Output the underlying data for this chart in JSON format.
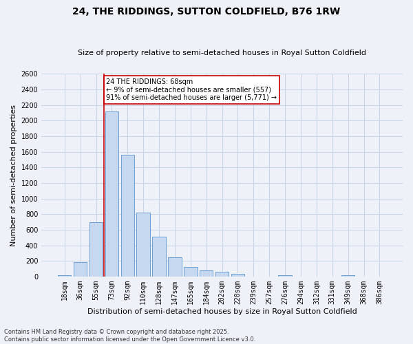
{
  "title": "24, THE RIDDINGS, SUTTON COLDFIELD, B76 1RW",
  "subtitle": "Size of property relative to semi-detached houses in Royal Sutton Coldfield",
  "xlabel": "Distribution of semi-detached houses by size in Royal Sutton Coldfield",
  "ylabel": "Number of semi-detached properties",
  "footer_line1": "Contains HM Land Registry data © Crown copyright and database right 2025.",
  "footer_line2": "Contains public sector information licensed under the Open Government Licence v3.0.",
  "categories": [
    "18sqm",
    "36sqm",
    "55sqm",
    "73sqm",
    "92sqm",
    "110sqm",
    "128sqm",
    "147sqm",
    "165sqm",
    "184sqm",
    "202sqm",
    "220sqm",
    "239sqm",
    "257sqm",
    "276sqm",
    "294sqm",
    "312sqm",
    "331sqm",
    "349sqm",
    "368sqm",
    "386sqm"
  ],
  "values": [
    20,
    180,
    700,
    2120,
    1560,
    820,
    510,
    250,
    125,
    80,
    60,
    30,
    0,
    0,
    20,
    0,
    0,
    0,
    15,
    0,
    0
  ],
  "bar_color": "#c5d8f0",
  "bar_edge_color": "#6ca0d4",
  "grid_color": "#c8d4e8",
  "background_color": "#eef2f8",
  "vline_x_pos": 2.5,
  "vline_color": "#cc0000",
  "annotation_text": "24 THE RIDDINGS: 68sqm\n← 9% of semi-detached houses are smaller (557)\n91% of semi-detached houses are larger (5,771) →",
  "annotation_box_color": "#ffffff",
  "annotation_box_edge_color": "#cc0000",
  "ylim": [
    0,
    2600
  ],
  "yticks": [
    0,
    200,
    400,
    600,
    800,
    1000,
    1200,
    1400,
    1600,
    1800,
    2000,
    2200,
    2400,
    2600
  ],
  "title_fontsize": 10,
  "subtitle_fontsize": 8,
  "ylabel_fontsize": 8,
  "xlabel_fontsize": 8,
  "footer_fontsize": 6
}
